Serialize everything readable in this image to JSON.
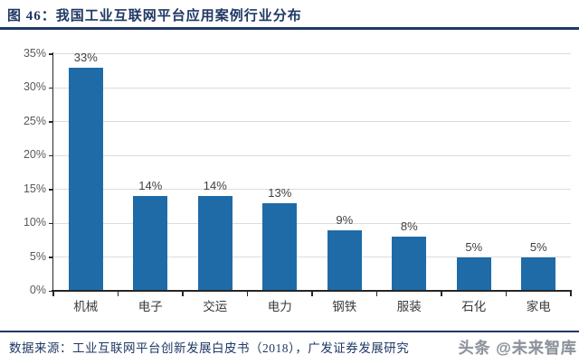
{
  "header": {
    "title": "图 46：我国工业互联网平台应用案例行业分布"
  },
  "chart_data": {
    "type": "bar",
    "title": "我国工业互联网平台应用案例行业分布",
    "categories": [
      "机械",
      "电子",
      "交运",
      "电力",
      "钢铁",
      "服装",
      "石化",
      "家电"
    ],
    "values": [
      33,
      14,
      14,
      13,
      9,
      8,
      5,
      5
    ],
    "value_labels": [
      "33%",
      "14%",
      "14%",
      "13%",
      "9%",
      "8%",
      "5%",
      "5%"
    ],
    "unit": "%",
    "xlabel": "",
    "ylabel": "",
    "ylim": [
      0,
      35
    ],
    "y_tick_step": 5,
    "y_tick_labels": [
      "0%",
      "5%",
      "10%",
      "15%",
      "20%",
      "25%",
      "30%",
      "35%"
    ],
    "grid": "horizontal",
    "legend": "none",
    "bar_color": "#1E6BA8"
  },
  "footer": {
    "source": "数据来源：工业互联网平台创新发展白皮书（2018），广发证券发展研究",
    "watermark": "头条 @未来智库"
  },
  "colors": {
    "accent_navy": "#1F3864",
    "bar_blue": "#1E6BA8",
    "grid_gray": "#DCDCDC",
    "axis_dark": "#262626",
    "tick_label_gray": "#595959",
    "value_label_gray": "#404040"
  }
}
